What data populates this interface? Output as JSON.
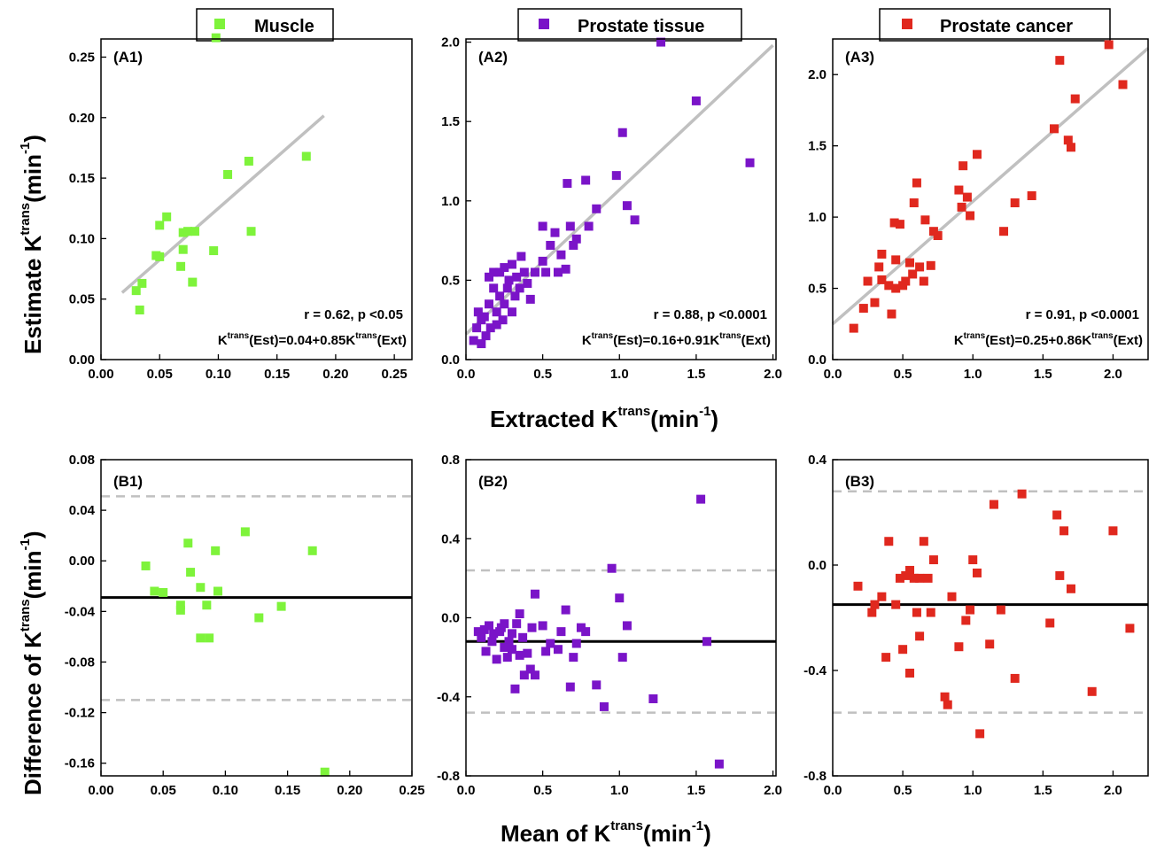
{
  "colors": {
    "muscle": "#7ef33b",
    "tissue": "#7a14c8",
    "cancer": "#e0281e",
    "fit_line": "#c0c0c0",
    "mean_line": "#000000",
    "limit_line": "#c0c0c0"
  },
  "legend": [
    {
      "label": "Muscle",
      "color": "#7ef33b"
    },
    {
      "label": "Prostate tissue",
      "color": "#7a14c8"
    },
    {
      "label": "Prostate cancer",
      "color": "#e0281e"
    }
  ],
  "axis_titles": {
    "top_y": "Estimate K",
    "top_y_sup": "trans",
    "top_y_unit": "(min",
    "top_x": "Extracted K",
    "top_x_sup": "trans",
    "top_x_unit": "(min",
    "bottom_y": "Difference of K",
    "bottom_y_sup": "trans",
    "bottom_y_unit": "(min",
    "bottom_x": "Mean of K",
    "bottom_x_sup": "trans",
    "bottom_x_unit": "(min",
    "unit_sup": "-1",
    "unit_close": ")"
  },
  "chart_data": [
    {
      "id": "A1",
      "type": "scatter",
      "label": "(A1)",
      "color_key": "muscle",
      "xlim": [
        0,
        0.265
      ],
      "ylim": [
        0,
        0.265
      ],
      "xticks": [
        "0.00",
        "0.05",
        "0.10",
        "0.15",
        "0.20",
        "0.25"
      ],
      "yticks": [
        "0.00",
        "0.05",
        "0.10",
        "0.15",
        "0.20",
        "0.25"
      ],
      "x": [
        0.03,
        0.033,
        0.035,
        0.047,
        0.05,
        0.05,
        0.056,
        0.068,
        0.07,
        0.07,
        0.074,
        0.078,
        0.08,
        0.096,
        0.098,
        0.108,
        0.126,
        0.128,
        0.175
      ],
      "y": [
        0.057,
        0.041,
        0.063,
        0.086,
        0.111,
        0.085,
        0.118,
        0.077,
        0.105,
        0.091,
        0.106,
        0.064,
        0.106,
        0.09,
        0.266,
        0.153,
        0.164,
        0.106,
        0.168
      ],
      "fit": {
        "x": [
          0.018,
          0.19
        ],
        "intercept": 0.04,
        "slope": 0.85
      },
      "stats_r": "r = 0.62, p <0.05",
      "eq_pre": "K",
      "eq_sup1": "trans",
      "eq_mid": "(Est)=0.04+0.85K",
      "eq_sup2": "trans",
      "eq_post": "(Ext)"
    },
    {
      "id": "A2",
      "type": "scatter",
      "label": "(A2)",
      "color_key": "tissue",
      "xlim": [
        0,
        2.02
      ],
      "ylim": [
        0,
        2.02
      ],
      "xticks": [
        "0.0",
        "0.5",
        "1.0",
        "1.5",
        "2.0"
      ],
      "yticks": [
        "0.0",
        "0.5",
        "1.0",
        "1.5",
        "2.0"
      ],
      "x": [
        0.05,
        0.07,
        0.08,
        0.1,
        0.1,
        0.12,
        0.13,
        0.15,
        0.15,
        0.16,
        0.18,
        0.18,
        0.2,
        0.2,
        0.22,
        0.22,
        0.24,
        0.25,
        0.25,
        0.27,
        0.28,
        0.3,
        0.3,
        0.32,
        0.33,
        0.35,
        0.36,
        0.38,
        0.4,
        0.42,
        0.45,
        0.5,
        0.5,
        0.52,
        0.55,
        0.58,
        0.6,
        0.62,
        0.65,
        0.66,
        0.68,
        0.7,
        0.72,
        0.78,
        0.8,
        0.85,
        0.98,
        1.02,
        1.05,
        1.1,
        1.27,
        1.5,
        1.85
      ],
      "y": [
        0.12,
        0.2,
        0.3,
        0.1,
        0.25,
        0.27,
        0.15,
        0.35,
        0.52,
        0.2,
        0.45,
        0.55,
        0.3,
        0.22,
        0.4,
        0.55,
        0.25,
        0.35,
        0.58,
        0.45,
        0.5,
        0.3,
        0.6,
        0.4,
        0.52,
        0.45,
        0.65,
        0.55,
        0.48,
        0.38,
        0.55,
        0.62,
        0.84,
        0.55,
        0.72,
        0.8,
        0.55,
        0.66,
        0.57,
        1.11,
        0.84,
        0.72,
        0.76,
        1.13,
        0.84,
        0.95,
        1.16,
        1.43,
        0.97,
        0.88,
        2.0,
        1.63,
        1.24
      ],
      "fit": {
        "x": [
          0.0,
          2.0
        ],
        "intercept": 0.16,
        "slope": 0.91
      },
      "stats_r": "r = 0.88, p <0.0001",
      "eq_pre": "K",
      "eq_sup1": "trans",
      "eq_mid": "(Est)=0.16+0.91K",
      "eq_sup2": "trans",
      "eq_post": "(Ext)"
    },
    {
      "id": "A3",
      "type": "scatter",
      "label": "(A3)",
      "color_key": "cancer",
      "xlim": [
        0,
        2.25
      ],
      "ylim": [
        0,
        2.25
      ],
      "xticks": [
        "0.0",
        "0.5",
        "1.0",
        "1.5",
        "2.0"
      ],
      "yticks": [
        "0.0",
        "0.5",
        "1.0",
        "1.5",
        "2.0"
      ],
      "x": [
        0.15,
        0.22,
        0.25,
        0.3,
        0.33,
        0.35,
        0.35,
        0.4,
        0.42,
        0.44,
        0.45,
        0.45,
        0.48,
        0.5,
        0.52,
        0.55,
        0.57,
        0.58,
        0.6,
        0.62,
        0.65,
        0.66,
        0.7,
        0.72,
        0.75,
        0.9,
        0.92,
        0.93,
        0.96,
        0.98,
        1.03,
        1.22,
        1.3,
        1.42,
        1.58,
        1.62,
        1.68,
        1.7,
        1.73,
        1.97,
        2.07
      ],
      "y": [
        0.22,
        0.36,
        0.55,
        0.4,
        0.65,
        0.74,
        0.56,
        0.52,
        0.32,
        0.96,
        0.7,
        0.5,
        0.95,
        0.52,
        0.55,
        0.68,
        0.6,
        1.1,
        1.24,
        0.65,
        0.55,
        0.98,
        0.66,
        0.9,
        0.87,
        1.19,
        1.07,
        1.36,
        1.14,
        1.01,
        1.44,
        0.9,
        1.1,
        1.15,
        1.62,
        2.1,
        1.54,
        1.49,
        1.83,
        2.21,
        1.93
      ],
      "fit": {
        "x": [
          0.0,
          2.25
        ],
        "intercept": 0.25,
        "slope": 0.86
      },
      "stats_r": "r = 0.91, p <0.0001",
      "eq_pre": "K",
      "eq_sup1": "trans",
      "eq_mid": "(Est)=0.25+0.86K",
      "eq_sup2": "trans",
      "eq_post": "(Ext)"
    },
    {
      "id": "B1",
      "type": "scatter",
      "label": "(B1)",
      "color_key": "muscle",
      "xlim": [
        0,
        0.25
      ],
      "ylim": [
        -0.17,
        0.08
      ],
      "xticks": [
        "0.00",
        "0.05",
        "0.10",
        "0.15",
        "0.20",
        "0.25"
      ],
      "xtick_values": [
        0,
        0.05,
        0.1,
        0.15,
        0.2,
        0.25
      ],
      "yticks": [
        "0.08",
        "0.04",
        "0.00",
        "-0.04",
        "-0.08",
        "-0.12",
        "-0.16"
      ],
      "ytick_values": [
        0.08,
        0.04,
        0.0,
        -0.04,
        -0.08,
        -0.12,
        -0.16
      ],
      "x": [
        0.036,
        0.043,
        0.05,
        0.064,
        0.064,
        0.07,
        0.072,
        0.08,
        0.08,
        0.085,
        0.087,
        0.092,
        0.094,
        0.116,
        0.127,
        0.145,
        0.17,
        0.18
      ],
      "y": [
        -0.004,
        -0.024,
        -0.025,
        -0.035,
        -0.039,
        0.014,
        -0.009,
        -0.021,
        -0.061,
        -0.035,
        -0.061,
        0.008,
        -0.024,
        0.023,
        -0.045,
        -0.036,
        0.008,
        -0.167
      ],
      "mean_line": -0.029,
      "limits": [
        0.051,
        -0.11
      ]
    },
    {
      "id": "B2",
      "type": "scatter",
      "label": "(B2)",
      "color_key": "tissue",
      "xlim": [
        0,
        2.02
      ],
      "ylim": [
        -0.8,
        0.8
      ],
      "xticks": [
        "0.0",
        "0.5",
        "1.0",
        "1.5",
        "2.0"
      ],
      "xtick_values": [
        0,
        0.5,
        1.0,
        1.5,
        2.0
      ],
      "yticks": [
        "0.8",
        "0.4",
        "0.0",
        "-0.4",
        "-0.8"
      ],
      "ytick_values": [
        0.8,
        0.4,
        0.0,
        -0.4,
        -0.8
      ],
      "x": [
        0.08,
        0.1,
        0.12,
        0.13,
        0.15,
        0.17,
        0.18,
        0.2,
        0.22,
        0.23,
        0.25,
        0.25,
        0.27,
        0.28,
        0.3,
        0.3,
        0.32,
        0.33,
        0.35,
        0.35,
        0.37,
        0.38,
        0.4,
        0.42,
        0.43,
        0.45,
        0.45,
        0.5,
        0.52,
        0.55,
        0.6,
        0.62,
        0.65,
        0.68,
        0.7,
        0.72,
        0.75,
        0.78,
        0.85,
        0.9,
        0.95,
        1.0,
        1.02,
        1.05,
        1.22,
        1.53,
        1.57,
        1.65
      ],
      "y": [
        -0.07,
        -0.1,
        -0.06,
        -0.17,
        -0.04,
        -0.12,
        -0.08,
        -0.21,
        -0.07,
        -0.05,
        -0.03,
        -0.15,
        -0.2,
        -0.12,
        -0.16,
        -0.08,
        -0.36,
        -0.03,
        -0.19,
        0.02,
        -0.1,
        -0.29,
        -0.18,
        -0.26,
        -0.05,
        0.12,
        -0.29,
        -0.04,
        -0.17,
        -0.13,
        -0.16,
        -0.07,
        0.04,
        -0.35,
        -0.2,
        -0.13,
        -0.05,
        -0.07,
        -0.34,
        -0.45,
        0.25,
        0.1,
        -0.2,
        -0.04,
        -0.41,
        0.6,
        -0.12,
        -0.74
      ],
      "mean_line": -0.12,
      "limits": [
        0.24,
        -0.48
      ]
    },
    {
      "id": "B3",
      "type": "scatter",
      "label": "(B3)",
      "color_key": "cancer",
      "xlim": [
        0,
        2.25
      ],
      "ylim": [
        -0.8,
        0.4
      ],
      "xticks": [
        "0.0",
        "0.5",
        "1.0",
        "1.5",
        "2.0"
      ],
      "xtick_values": [
        0,
        0.5,
        1.0,
        1.5,
        2.0
      ],
      "yticks": [
        "0.4",
        "0.0",
        "-0.4",
        "-0.8"
      ],
      "ytick_values": [
        0.4,
        0.0,
        -0.4,
        -0.8
      ],
      "x": [
        0.18,
        0.28,
        0.3,
        0.35,
        0.38,
        0.4,
        0.45,
        0.48,
        0.5,
        0.52,
        0.55,
        0.55,
        0.58,
        0.6,
        0.62,
        0.62,
        0.65,
        0.68,
        0.7,
        0.72,
        0.8,
        0.82,
        0.85,
        0.9,
        0.95,
        0.98,
        1.0,
        1.03,
        1.05,
        1.12,
        1.15,
        1.2,
        1.3,
        1.35,
        1.55,
        1.6,
        1.62,
        1.65,
        1.7,
        1.85,
        2.0,
        2.12
      ],
      "y": [
        -0.08,
        -0.18,
        -0.15,
        -0.12,
        -0.35,
        0.09,
        -0.15,
        -0.05,
        -0.32,
        -0.04,
        -0.02,
        -0.41,
        -0.05,
        -0.18,
        -0.27,
        -0.05,
        0.09,
        -0.05,
        -0.18,
        0.02,
        -0.5,
        -0.53,
        -0.12,
        -0.31,
        -0.21,
        -0.17,
        0.02,
        -0.03,
        -0.64,
        -0.3,
        0.23,
        -0.17,
        -0.43,
        0.27,
        -0.22,
        0.19,
        -0.04,
        0.13,
        -0.09,
        -0.48,
        0.13,
        -0.24
      ],
      "mean_line": -0.15,
      "limits": [
        0.28,
        -0.56
      ]
    }
  ]
}
